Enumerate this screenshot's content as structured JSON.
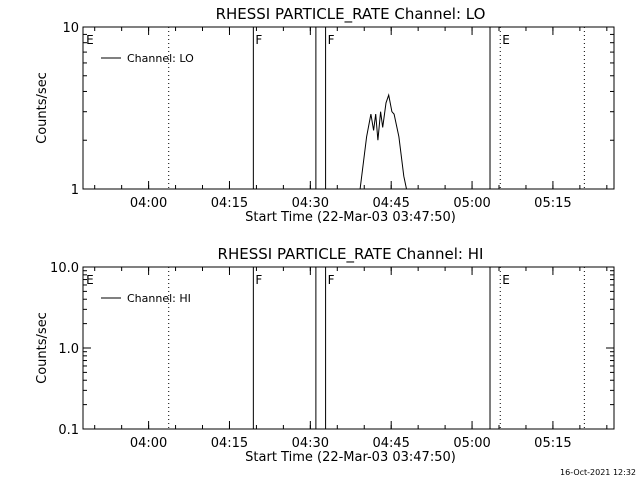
{
  "chart_data": [
    {
      "type": "line",
      "title": "RHESSI PARTICLE_RATE Channel: LO",
      "xlabel": "Start Time (22-Mar-03 03:47:50)",
      "ylabel": "Counts/sec",
      "x_tick_labels": [
        "04:00",
        "04:15",
        "04:30",
        "04:45",
        "05:00",
        "05:15"
      ],
      "x_ticks_min": [
        12.17,
        27.17,
        42.17,
        57.17,
        72.17,
        87.17
      ],
      "xlim_min": [
        0,
        98.5
      ],
      "yscale": "log",
      "ylim": [
        1,
        10
      ],
      "y_tick_labels": [
        {
          "value": 10,
          "label": "10"
        },
        {
          "value": 1,
          "label": "1"
        }
      ],
      "legend": {
        "label": "Channel: LO",
        "placement": "top-left"
      },
      "markers": [
        {
          "label": "E",
          "x": 0.2,
          "style": "none"
        },
        {
          "label": "",
          "x": 15.9,
          "style": "dotted"
        },
        {
          "label": "F",
          "x": 31.6,
          "style": "solid"
        },
        {
          "label": "",
          "x": 43.2,
          "style": "solid"
        },
        {
          "label": "F",
          "x": 45.0,
          "style": "solid"
        },
        {
          "label": "",
          "x": 75.5,
          "style": "solid"
        },
        {
          "label": "E",
          "x": 77.4,
          "style": "dotted"
        },
        {
          "label": "",
          "x": 93.0,
          "style": "dotted"
        }
      ],
      "series": [
        {
          "name": "Channel: LO",
          "x": [
            51.4,
            52.6,
            53.4,
            53.9,
            54.3,
            54.7,
            55.2,
            55.6,
            56.2,
            56.7,
            57.3,
            57.7,
            58.6,
            59.5,
            60.0
          ],
          "y": [
            1,
            2.1,
            2.9,
            2.3,
            2.9,
            2.0,
            3.0,
            2.4,
            3.4,
            3.8,
            3.0,
            2.9,
            2.1,
            1.2,
            1
          ]
        }
      ]
    },
    {
      "type": "line",
      "title": "RHESSI PARTICLE_RATE Channel: HI",
      "xlabel": "Start Time (22-Mar-03 03:47:50)",
      "ylabel": "Counts/sec",
      "x_tick_labels": [
        "04:00",
        "04:15",
        "04:30",
        "04:45",
        "05:00",
        "05:15"
      ],
      "x_ticks_min": [
        12.17,
        27.17,
        42.17,
        57.17,
        72.17,
        87.17
      ],
      "xlim_min": [
        0,
        98.5
      ],
      "yscale": "log",
      "ylim": [
        0.1,
        10
      ],
      "y_tick_labels": [
        {
          "value": 10,
          "label": "10.0"
        },
        {
          "value": 1,
          "label": "1.0"
        },
        {
          "value": 0.1,
          "label": "0.1"
        }
      ],
      "legend": {
        "label": "Channel: HI",
        "placement": "top-left"
      },
      "markers": [
        {
          "label": "E",
          "x": 0.2,
          "style": "none"
        },
        {
          "label": "",
          "x": 15.9,
          "style": "dotted"
        },
        {
          "label": "F",
          "x": 31.6,
          "style": "solid"
        },
        {
          "label": "",
          "x": 43.2,
          "style": "solid"
        },
        {
          "label": "F",
          "x": 45.0,
          "style": "solid"
        },
        {
          "label": "",
          "x": 75.5,
          "style": "solid"
        },
        {
          "label": "E",
          "x": 77.4,
          "style": "dotted"
        },
        {
          "label": "",
          "x": 93.0,
          "style": "dotted"
        }
      ],
      "series": [
        {
          "name": "Channel: HI",
          "x": [],
          "y": []
        }
      ]
    }
  ],
  "footer": {
    "timestamp": "16-Oct-2021 12:32"
  }
}
